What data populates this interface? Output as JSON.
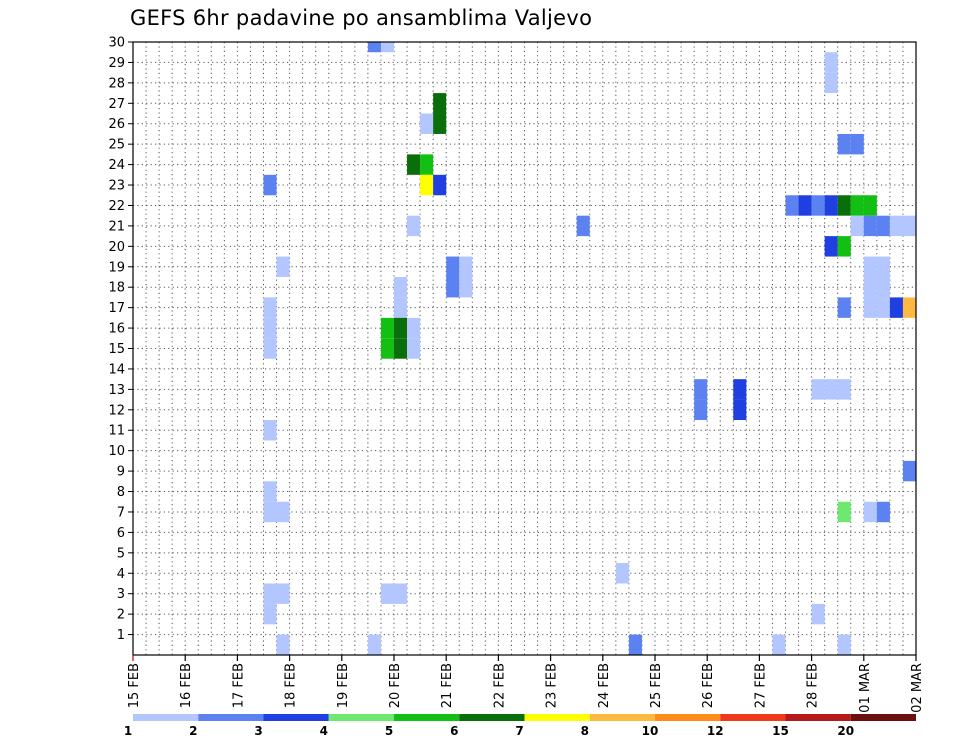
{
  "chart_data": {
    "type": "heatmap",
    "title": "GEFS 6hr padavine po ansamblima Valjevo",
    "xlabel": "",
    "ylabel": "",
    "x_tick_labels": [
      "15 FEB",
      "16 FEB",
      "17 FEB",
      "18 FEB",
      "19 FEB",
      "20 FEB",
      "21 FEB",
      "22 FEB",
      "23 FEB",
      "24 FEB",
      "25 FEB",
      "26 FEB",
      "27 FEB",
      "28 FEB",
      "01 MAR",
      "02 MAR"
    ],
    "x_time_range": [
      "15 FEB 00Z",
      "02 MAR 00Z"
    ],
    "y_tick_labels": [
      1,
      2,
      3,
      4,
      5,
      6,
      7,
      8,
      9,
      10,
      11,
      12,
      13,
      14,
      15,
      16,
      17,
      18,
      19,
      20,
      21,
      22,
      23,
      24,
      25,
      26,
      27,
      28,
      29,
      30
    ],
    "ylim": [
      0,
      30
    ],
    "grid": "dotted",
    "legend_placement": "bottom",
    "legend": {
      "labels": [
        "1",
        "2",
        "3",
        "4",
        "5",
        "6",
        "7",
        "8",
        "10",
        "12",
        "15",
        "20"
      ],
      "colors": [
        "#b3c6ff",
        "#5b82f0",
        "#1f3fe0",
        "#6ee86e",
        "#12bf12",
        "#0a6e0a",
        "#ffff00",
        "#ffb940",
        "#ff8c1a",
        "#ee3a1a",
        "#b41a1a",
        "#6b0f0f"
      ]
    },
    "cells_note": "each cell: t = start time in days after 15 FEB 00Z (6-hour steps), m = ensemble member, v = precipitation class value",
    "cells": [
      {
        "t": 4.5,
        "m": 30,
        "v": 2
      },
      {
        "t": 4.75,
        "m": 30,
        "v": 1
      },
      {
        "t": 13.25,
        "m": 29,
        "v": 1
      },
      {
        "t": 13.25,
        "m": 28,
        "v": 1
      },
      {
        "t": 5.5,
        "m": 26,
        "v": 1
      },
      {
        "t": 5.75,
        "m": 27,
        "v": 6
      },
      {
        "t": 5.75,
        "m": 26,
        "v": 6
      },
      {
        "t": 13.5,
        "m": 25,
        "v": 2
      },
      {
        "t": 13.75,
        "m": 25,
        "v": 2
      },
      {
        "t": 5.25,
        "m": 24,
        "v": 6
      },
      {
        "t": 5.5,
        "m": 24,
        "v": 5
      },
      {
        "t": 2.5,
        "m": 23,
        "v": 2
      },
      {
        "t": 5.5,
        "m": 23,
        "v": 7
      },
      {
        "t": 5.75,
        "m": 23,
        "v": 3
      },
      {
        "t": 12.5,
        "m": 22,
        "v": 2
      },
      {
        "t": 12.75,
        "m": 22,
        "v": 3
      },
      {
        "t": 13.0,
        "m": 22,
        "v": 2
      },
      {
        "t": 13.25,
        "m": 22,
        "v": 3
      },
      {
        "t": 13.5,
        "m": 22,
        "v": 6
      },
      {
        "t": 13.75,
        "m": 22,
        "v": 5
      },
      {
        "t": 14.0,
        "m": 22,
        "v": 5
      },
      {
        "t": 5.25,
        "m": 21,
        "v": 1
      },
      {
        "t": 8.5,
        "m": 21,
        "v": 2
      },
      {
        "t": 13.75,
        "m": 21,
        "v": 1
      },
      {
        "t": 14.0,
        "m": 21,
        "v": 2
      },
      {
        "t": 14.25,
        "m": 21,
        "v": 2
      },
      {
        "t": 14.5,
        "m": 21,
        "v": 1
      },
      {
        "t": 14.75,
        "m": 21,
        "v": 1
      },
      {
        "t": 13.25,
        "m": 20,
        "v": 3
      },
      {
        "t": 13.5,
        "m": 20,
        "v": 5
      },
      {
        "t": 2.75,
        "m": 19,
        "v": 1
      },
      {
        "t": 6.0,
        "m": 19,
        "v": 2
      },
      {
        "t": 6.25,
        "m": 19,
        "v": 1
      },
      {
        "t": 14.0,
        "m": 19,
        "v": 1
      },
      {
        "t": 14.25,
        "m": 19,
        "v": 1
      },
      {
        "t": 5.0,
        "m": 18,
        "v": 1
      },
      {
        "t": 6.0,
        "m": 18,
        "v": 2
      },
      {
        "t": 6.25,
        "m": 18,
        "v": 1
      },
      {
        "t": 14.0,
        "m": 18,
        "v": 1
      },
      {
        "t": 14.25,
        "m": 18,
        "v": 1
      },
      {
        "t": 2.5,
        "m": 17,
        "v": 1
      },
      {
        "t": 5.0,
        "m": 17,
        "v": 1
      },
      {
        "t": 13.5,
        "m": 17,
        "v": 2
      },
      {
        "t": 14.0,
        "m": 17,
        "v": 1
      },
      {
        "t": 14.25,
        "m": 17,
        "v": 1
      },
      {
        "t": 14.5,
        "m": 17,
        "v": 3
      },
      {
        "t": 14.75,
        "m": 17,
        "v": 9
      },
      {
        "t": 2.5,
        "m": 16,
        "v": 1
      },
      {
        "t": 4.75,
        "m": 16,
        "v": 5
      },
      {
        "t": 5.0,
        "m": 16,
        "v": 6
      },
      {
        "t": 5.25,
        "m": 16,
        "v": 1
      },
      {
        "t": 2.5,
        "m": 15,
        "v": 1
      },
      {
        "t": 4.75,
        "m": 15,
        "v": 5
      },
      {
        "t": 5.0,
        "m": 15,
        "v": 6
      },
      {
        "t": 5.25,
        "m": 15,
        "v": 1
      },
      {
        "t": 10.75,
        "m": 12,
        "v": 2
      },
      {
        "t": 11.5,
        "m": 12,
        "v": 3
      },
      {
        "t": 13.0,
        "m": 13,
        "v": 1
      },
      {
        "t": 13.25,
        "m": 13,
        "v": 1
      },
      {
        "t": 13.5,
        "m": 13,
        "v": 1
      },
      {
        "t": 10.75,
        "m": 13,
        "v": 2
      },
      {
        "t": 11.5,
        "m": 13,
        "v": 3
      },
      {
        "t": 2.5,
        "m": 11,
        "v": 1
      },
      {
        "t": 14.75,
        "m": 9,
        "v": 2
      },
      {
        "t": 2.5,
        "m": 8,
        "v": 1
      },
      {
        "t": 2.5,
        "m": 7,
        "v": 1
      },
      {
        "t": 2.75,
        "m": 7,
        "v": 1
      },
      {
        "t": 13.5,
        "m": 7,
        "v": 4
      },
      {
        "t": 14.0,
        "m": 7,
        "v": 1
      },
      {
        "t": 14.25,
        "m": 7,
        "v": 2
      },
      {
        "t": 9.25,
        "m": 4,
        "v": 1
      },
      {
        "t": 2.5,
        "m": 3,
        "v": 1
      },
      {
        "t": 2.75,
        "m": 3,
        "v": 1
      },
      {
        "t": 4.75,
        "m": 3,
        "v": 1
      },
      {
        "t": 5.0,
        "m": 3,
        "v": 1
      },
      {
        "t": 2.5,
        "m": 2,
        "v": 1
      },
      {
        "t": 13.0,
        "m": 2,
        "v": 1
      },
      {
        "t": 2.75,
        "m": 0.5,
        "v": 1
      },
      {
        "t": 4.5,
        "m": 0.5,
        "v": 1
      },
      {
        "t": 9.5,
        "m": 0.5,
        "v": 2
      },
      {
        "t": 12.25,
        "m": 0.5,
        "v": 1
      },
      {
        "t": 13.5,
        "m": 0.5,
        "v": 1
      }
    ]
  }
}
